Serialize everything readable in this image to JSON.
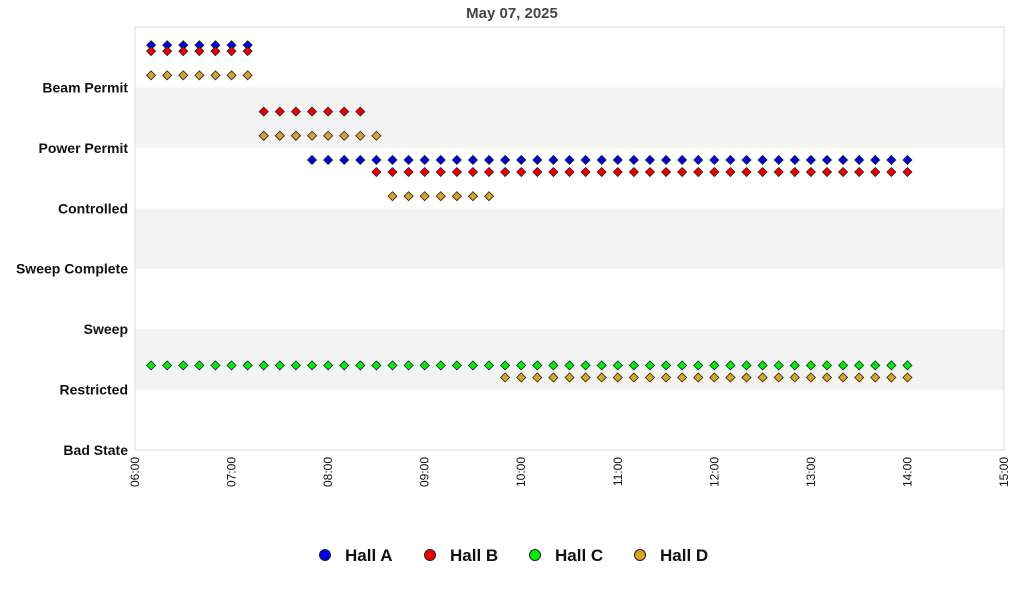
{
  "chart_data": {
    "type": "scatter",
    "title": "May 07, 2025",
    "y_categories": [
      "Bad State",
      "Restricted",
      "Sweep",
      "Sweep Complete",
      "Controlled",
      "Power Permit",
      "Beam Permit"
    ],
    "x_ticks": [
      "06:00",
      "07:00",
      "08:00",
      "09:00",
      "10:00",
      "11:00",
      "12:00",
      "13:00",
      "14:00",
      "15:00"
    ],
    "xlim": [
      "06:00",
      "15:00"
    ],
    "grid": "alternating horizontal bands",
    "legend_position": "bottom",
    "series": [
      {
        "name": "Hall A",
        "color": "#0000ee",
        "segments": [
          {
            "level": "Beam Permit",
            "offset": 0.7,
            "from": "06:10",
            "to": "07:10"
          },
          {
            "level": "Power Permit",
            "offset": 0.2,
            "from": "07:20",
            "to": "07:40"
          },
          {
            "level": "Controlled",
            "offset": 0.8,
            "from": "07:50",
            "to": "14:00"
          }
        ]
      },
      {
        "name": "Hall B",
        "color": "#ee0000",
        "segments": [
          {
            "level": "Beam Permit",
            "offset": 0.6,
            "from": "06:10",
            "to": "07:10"
          },
          {
            "level": "Power Permit",
            "offset": 0.6,
            "from": "07:20",
            "to": "08:20"
          },
          {
            "level": "Controlled",
            "offset": 0.6,
            "from": "08:30",
            "to": "14:00"
          }
        ]
      },
      {
        "name": "Hall C",
        "color": "#00ee00",
        "segments": [
          {
            "level": "Restricted",
            "offset": 0.4,
            "from": "06:10",
            "to": "14:00"
          }
        ]
      },
      {
        "name": "Hall D",
        "color": "#daa520",
        "segments": [
          {
            "level": "Beam Permit",
            "offset": 0.2,
            "from": "06:10",
            "to": "07:10"
          },
          {
            "level": "Power Permit",
            "offset": 0.2,
            "from": "07:20",
            "to": "08:30"
          },
          {
            "level": "Controlled",
            "offset": 0.2,
            "from": "08:40",
            "to": "09:40"
          },
          {
            "level": "Restricted",
            "offset": 0.2,
            "from": "09:50",
            "to": "14:00"
          }
        ]
      }
    ]
  }
}
